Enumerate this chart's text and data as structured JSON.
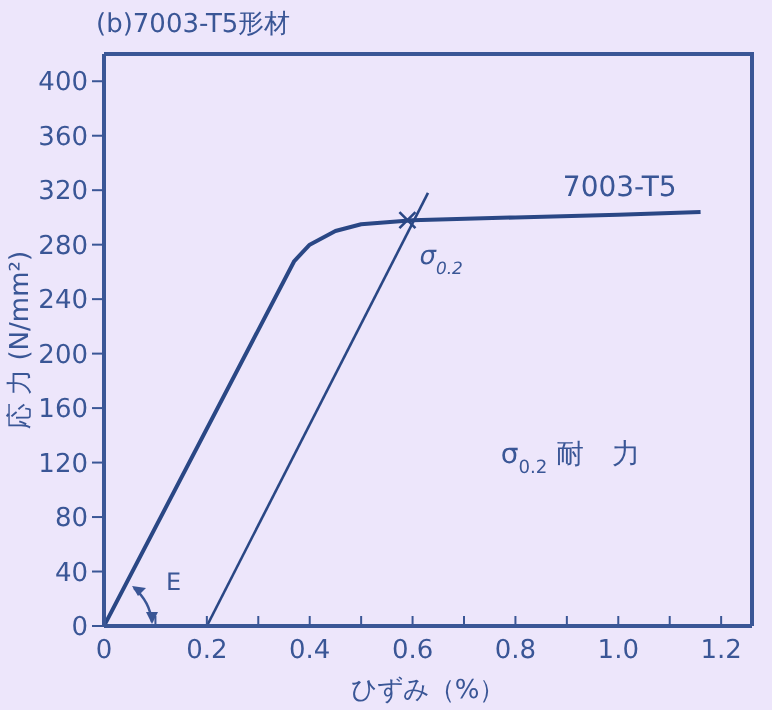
{
  "chart_data": {
    "type": "line",
    "title": "(b)7003-T5形材",
    "xlabel": "ひずみ（%）",
    "ylabel": "応 力 (N/mm²)",
    "xlim": [
      0,
      1.26
    ],
    "ylim": [
      0,
      420
    ],
    "xticks": [
      0,
      {
        "value": 0.1,
        "label": null
      },
      0.2,
      {
        "value": 0.3,
        "label": null
      },
      0.4,
      {
        "value": 0.5,
        "label": null
      },
      0.6,
      {
        "value": 0.7,
        "label": null
      },
      0.8,
      {
        "value": 0.9,
        "label": null
      },
      {
        "value": 1,
        "label": "1.0"
      },
      {
        "value": 1.1,
        "label": null
      },
      1.2
    ],
    "yticks": [
      0,
      40,
      80,
      120,
      160,
      200,
      240,
      280,
      320,
      360,
      400
    ],
    "grid": false,
    "legend": false,
    "marker": "none",
    "line_style": "solid",
    "series": [
      {
        "name": "7003-T5",
        "color": "#2a4785",
        "x": [
          0,
          0.37,
          0.4,
          0.45,
          0.5,
          0.6,
          0.8,
          1.0,
          1.16
        ],
        "values": [
          0,
          268,
          280,
          290,
          295,
          298,
          300,
          302,
          304
        ]
      },
      {
        "color": "#2a4785",
        "x": [
          0.2,
          0.63
        ],
        "values": [
          0,
          318
        ]
      },
      {
        "type": "scatter",
        "marker": "cross",
        "color": "#2a4785",
        "x": [
          0.59
        ],
        "values": [
          298
        ]
      }
    ],
    "annotations": [
      {
        "text": "σ$_{0.2}$",
        "x": 0.59,
        "y": 298
      },
      "σ$_{0.2}$ 耐　力",
      "E"
    ]
  }
}
